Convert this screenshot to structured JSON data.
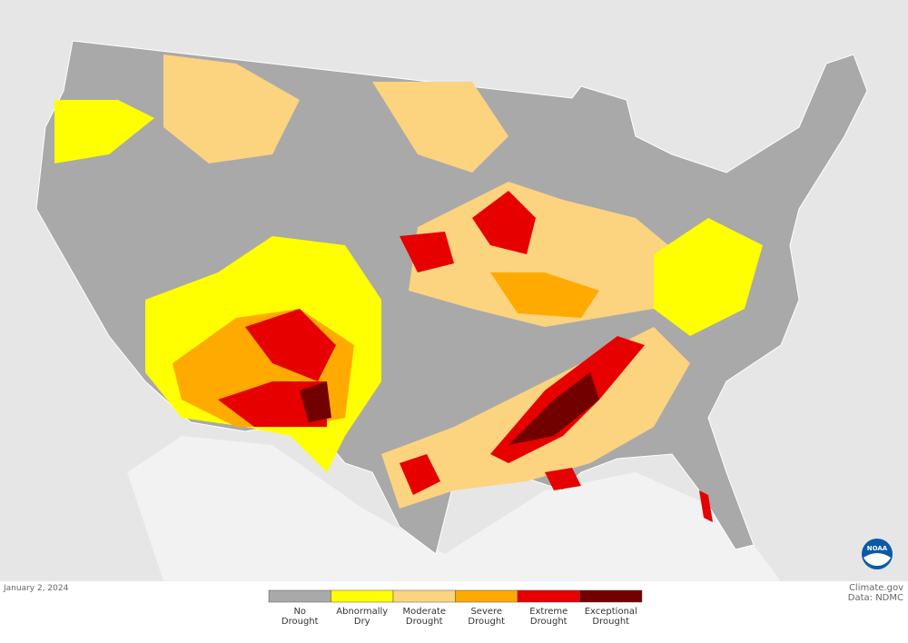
{
  "map": {
    "date": "January 2, 2024",
    "credit": "Climate.gov",
    "source": "Data: NDMC",
    "logo": "NOAA",
    "legend": [
      {
        "lines": [
          "No",
          "Drought"
        ],
        "color": "#a9a9a9"
      },
      {
        "lines": [
          "Abnormally",
          "Dry"
        ],
        "color": "#ffff00"
      },
      {
        "lines": [
          "Moderate",
          "Drought"
        ],
        "color": "#fcd37f"
      },
      {
        "lines": [
          "Severe",
          "Drought"
        ],
        "color": "#ffaa00"
      },
      {
        "lines": [
          "Extreme",
          "Drought"
        ],
        "color": "#e60000"
      },
      {
        "lines": [
          "Exceptional",
          "Drought"
        ],
        "color": "#730000"
      }
    ]
  }
}
